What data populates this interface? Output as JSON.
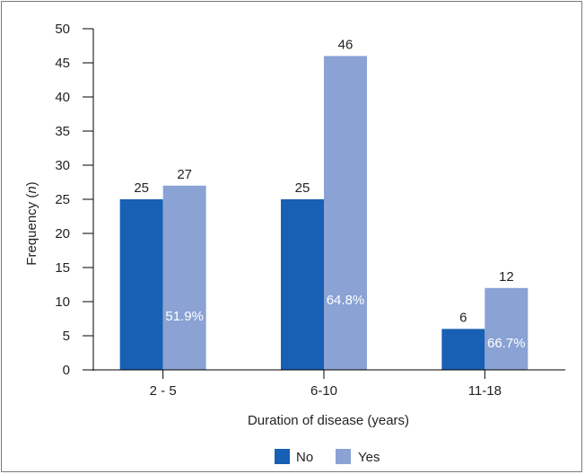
{
  "chart_data": {
    "type": "bar",
    "categories": [
      "2 - 5",
      "6-10",
      "11-18"
    ],
    "series": [
      {
        "name": "No",
        "values": [
          25,
          25,
          6
        ],
        "value_labels": [
          "25",
          "25",
          "6"
        ],
        "color": "#1760b4"
      },
      {
        "name": "Yes",
        "values": [
          27,
          46,
          12
        ],
        "value_labels": [
          "27",
          "46",
          "12"
        ],
        "percent_labels": [
          "51.9%",
          "64.8%",
          "66.7%"
        ],
        "color": "#8aa2d4"
      }
    ],
    "xlabel": "Duration of disease (years)",
    "ylabel_prefix": "Frequency (",
    "ylabel_var": "n",
    "ylabel_suffix": ")",
    "ylim": [
      0,
      50
    ],
    "yticks": [
      "0",
      "5",
      "10",
      "15",
      "20",
      "25",
      "30",
      "35",
      "40",
      "45",
      "50"
    ],
    "grid": false,
    "legend_position": "bottom"
  }
}
